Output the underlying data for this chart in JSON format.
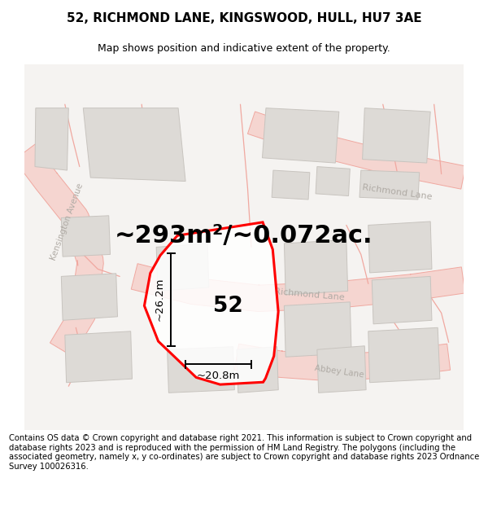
{
  "title": "52, RICHMOND LANE, KINGSWOOD, HULL, HU7 3AE",
  "subtitle": "Map shows position and indicative extent of the property.",
  "area_text": "~293m²/~0.072ac.",
  "number_label": "52",
  "dim_vertical": "~26.2m",
  "dim_horizontal": "~20.8m",
  "map_bg": "#f5f3f1",
  "plot_color": "#ff0000",
  "building_fill": "#dddad6",
  "building_edge": "#c8c4bf",
  "road_line_color": "#f0a8a0",
  "road_fill_color": "#f5d5d0",
  "street_label_color": "#b0aba5",
  "footer_text": "Contains OS data © Crown copyright and database right 2021. This information is subject to Crown copyright and database rights 2023 and is reproduced with the permission of HM Land Registry. The polygons (including the associated geometry, namely x, y co-ordinates) are subject to Crown copyright and database rights 2023 Ordnance Survey 100026316.",
  "figsize": [
    6.0,
    6.25
  ],
  "dpi": 100,
  "title_fontsize": 11,
  "subtitle_fontsize": 9,
  "area_fontsize": 22,
  "label_fontsize": 19,
  "dim_fontsize": 9.5,
  "footer_fontsize": 7.2
}
